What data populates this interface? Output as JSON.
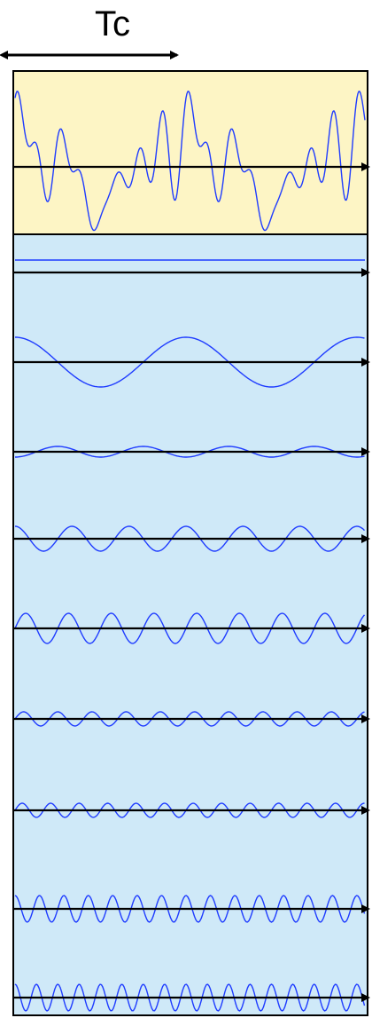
{
  "diagram": {
    "period_label": "Tc",
    "colors": {
      "top_panel_fill": "#fdf5c5",
      "bottom_panel_fill": "#cfe9f8",
      "panel_border": "#000000",
      "wave_stroke": "#1f3cff",
      "axis_stroke": "#000000"
    },
    "composite_signal": {
      "description_visible": false,
      "harmonic_sum": true
    },
    "harmonics": [
      {
        "order": 0,
        "relative_amplitude": 0.0,
        "shape": "dc-line"
      },
      {
        "order": 1,
        "relative_amplitude": 1.0
      },
      {
        "order": 2,
        "relative_amplitude": 0.25
      },
      {
        "order": 3,
        "relative_amplitude": 0.6
      },
      {
        "order": 4,
        "relative_amplitude": 0.7
      },
      {
        "order": 5,
        "relative_amplitude": 0.3
      },
      {
        "order": 6,
        "relative_amplitude": 0.3
      },
      {
        "order": 7,
        "relative_amplitude": 0.65
      },
      {
        "order": 8,
        "relative_amplitude": 0.65
      }
    ]
  }
}
